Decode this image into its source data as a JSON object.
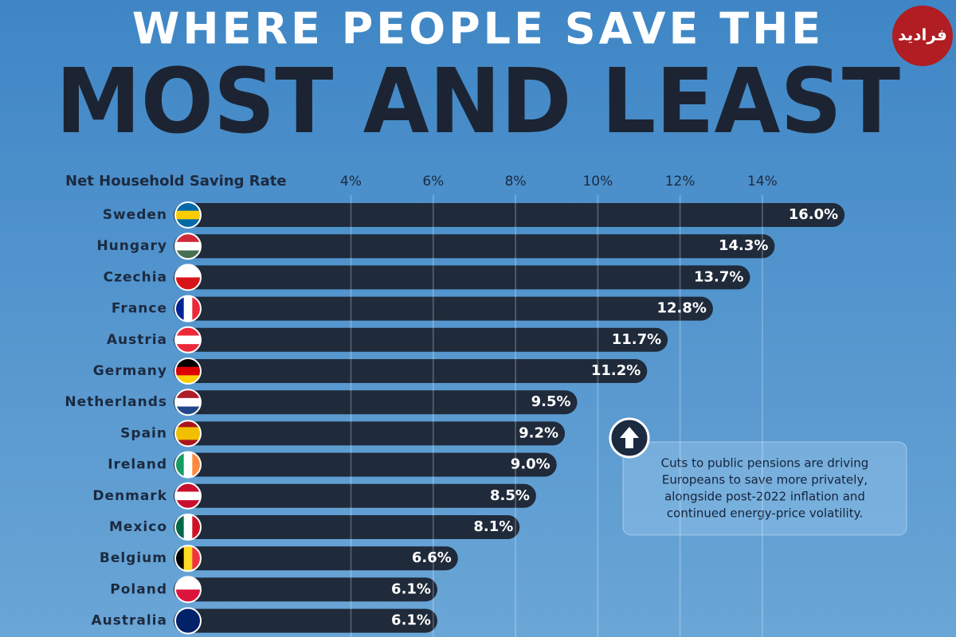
{
  "chart_data": {
    "type": "bar",
    "title": "WHERE PEOPLE SAVE THE",
    "subtitle": "MOST AND LEAST",
    "x_label": "Net Household Saving Rate",
    "annotation": [
      "Cuts to public pensions are driving",
      "Europeans to save more privately,",
      "alongside post-2022 inflation and",
      "continued energy-price volatility."
    ],
    "watermark": "فرادید",
    "categories": [
      "Sweden",
      "Hungary",
      "Czechia",
      "France",
      "Austria",
      "Germany",
      "Netherlands",
      "Spain",
      "Ireland",
      "Denmark",
      "Mexico",
      "Belgium",
      "Poland",
      "Australia"
    ],
    "values": [
      16.0,
      14.3,
      13.7,
      12.8,
      11.7,
      11.2,
      9.5,
      9.2,
      9.0,
      8.5,
      8.1,
      6.6,
      6.1,
      6.1
    ],
    "value_labels": [
      "16.0%",
      "14.3%",
      "13.7%",
      "12.8%",
      "11.7%",
      "11.2%",
      "9.5%",
      "9.2%",
      "9.0%",
      "8.5%",
      "8.1%",
      "6.6%",
      "6.1%",
      "6.1%"
    ],
    "color": "#1f2a3a",
    "xlim": [
      0,
      16.5
    ],
    "xticks": [
      {
        "value": 4,
        "label": "4%"
      },
      {
        "value": 6,
        "label": "6%"
      },
      {
        "value": 8,
        "label": "8%"
      },
      {
        "value": 10,
        "label": "10%"
      },
      {
        "value": 12,
        "label": "12%"
      },
      {
        "value": 14,
        "label": "14%"
      }
    ],
    "grid": true
  }
}
